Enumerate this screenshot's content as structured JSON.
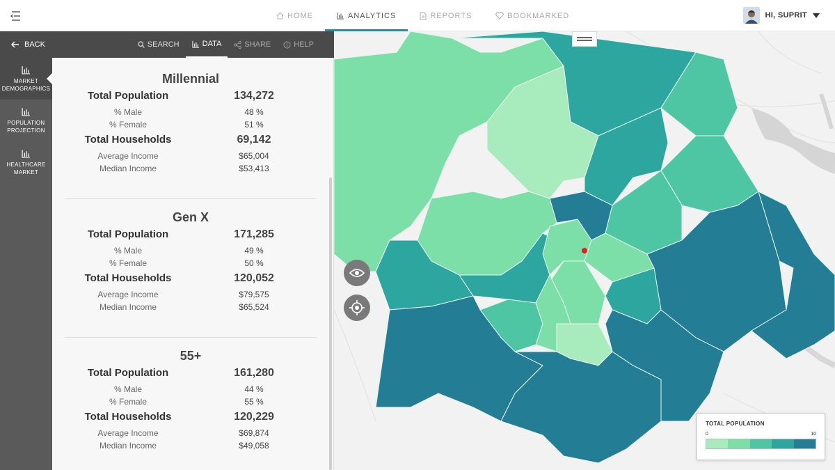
{
  "nav": {
    "tabs": [
      {
        "label": "HOME",
        "icon": "home-icon"
      },
      {
        "label": "ANALYTICS",
        "icon": "bar-chart-icon",
        "active": true
      },
      {
        "label": "REPORTS",
        "icon": "document-icon"
      },
      {
        "label": "BOOKMARKED",
        "icon": "heart-icon"
      }
    ],
    "user": "HI, SUPRIT"
  },
  "panel": {
    "back": "BACK",
    "tabs": [
      {
        "label": "SEARCH",
        "icon": "search-icon"
      },
      {
        "label": "DATA",
        "icon": "bar-chart-icon",
        "active": true
      },
      {
        "label": "SHARE",
        "icon": "share-icon"
      },
      {
        "label": "HELP",
        "icon": "info-icon"
      }
    ]
  },
  "rail": {
    "items": [
      {
        "label": "MARKET\nDEMOGRAPHICS",
        "active": true
      },
      {
        "label": "POPULATION\nPROJECTION"
      },
      {
        "label": "HEALTHCARE\nMARKET"
      }
    ]
  },
  "sections": [
    {
      "title": "Millennial",
      "total_population_label": "Total Population",
      "total_population": "134,272",
      "male_label": "% Male",
      "male": "48 %",
      "female_label": "% Female",
      "female": "51 %",
      "households_label": "Total Households",
      "households": "69,142",
      "avg_income_label": "Average Income",
      "avg_income": "$65,004",
      "median_income_label": "Median Income",
      "median_income": "$53,413"
    },
    {
      "title": "Gen X",
      "total_population_label": "Total Population",
      "total_population": "171,285",
      "male_label": "% Male",
      "male": "49 %",
      "female_label": "% Female",
      "female": "50 %",
      "households_label": "Total Households",
      "households": "120,052",
      "avg_income_label": "Average Income",
      "avg_income": "$79,575",
      "median_income_label": "Median Income",
      "median_income": "$65,524"
    },
    {
      "title": "55+",
      "total_population_label": "Total Population",
      "total_population": "161,280",
      "male_label": "% Male",
      "male": "44 %",
      "female_label": "% Female",
      "female": "55 %",
      "households_label": "Total Households",
      "households": "120,229",
      "avg_income_label": "Average Income",
      "avg_income": "$69,874",
      "median_income_label": "Median Income",
      "median_income": "$49,058"
    }
  ],
  "legend": {
    "title": "TOTAL POPULATION",
    "min": "0",
    "max": "10",
    "colors": [
      "#a8ebbd",
      "#7ddfa8",
      "#4ec6a3",
      "#2ea6a0",
      "#237e95"
    ]
  },
  "colors": {
    "accent": "#2a8aa0",
    "marker": "#e02020"
  }
}
